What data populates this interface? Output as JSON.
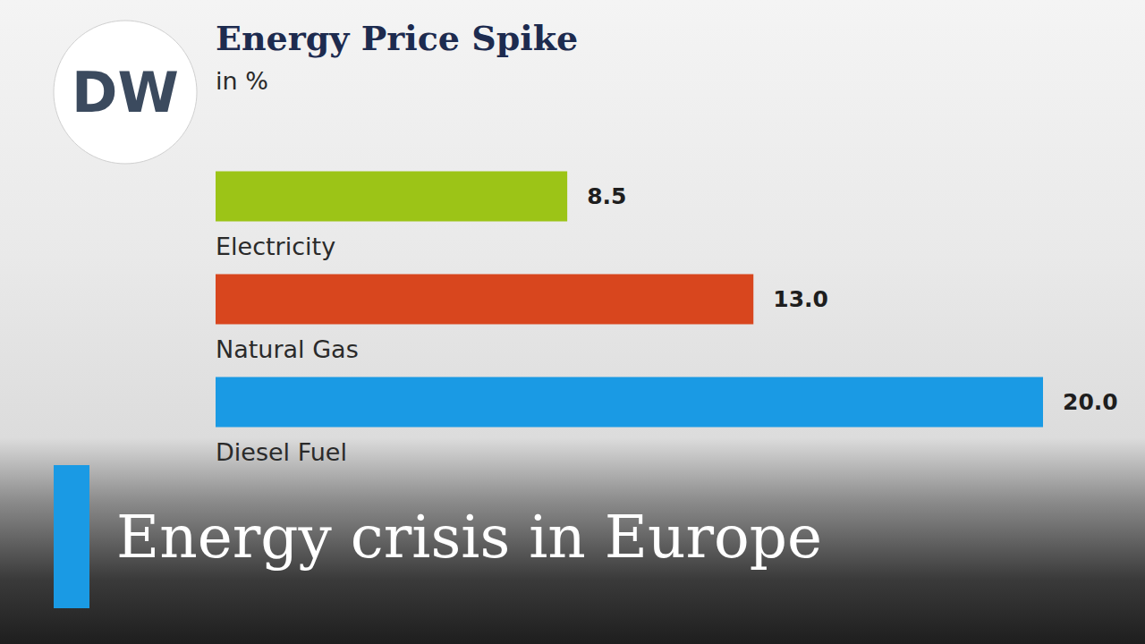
{
  "chart_data": {
    "type": "bar",
    "orientation": "horizontal",
    "title": "Energy Price Spike",
    "subtitle": "in %",
    "categories": [
      "Electricity",
      "Natural Gas",
      "Diesel Fuel"
    ],
    "values": [
      8.5,
      13,
      20
    ],
    "value_labels": [
      "8.5",
      "13.0",
      "20.0"
    ],
    "colors": [
      "#9cc417",
      "#d8461e",
      "#1a9ae4"
    ],
    "xlim": [
      0,
      20
    ],
    "xticks": [],
    "grid": false,
    "data_labels": true,
    "tick_labels": "y",
    "annotations": [
      "DW",
      "Energy crisis in Europe"
    ]
  }
}
